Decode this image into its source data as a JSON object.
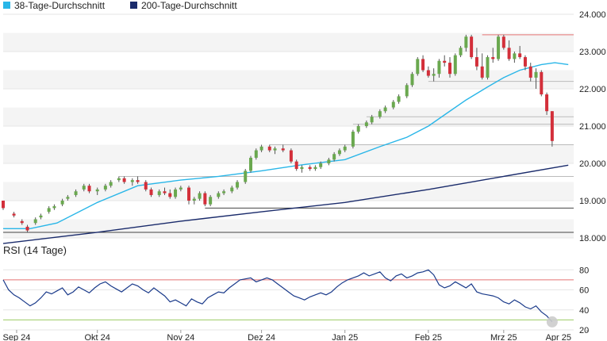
{
  "chart_data": {
    "type": "candlestick",
    "legend": {
      "position": "top-left",
      "entries": [
        {
          "label": "38-Tage-Durchschnitt",
          "color": "#29b6e8"
        },
        {
          "label": "200-Tage-Durchschnitt",
          "color": "#1a2b6b"
        }
      ]
    },
    "price_axis": {
      "side": "right",
      "range": [
        18000,
        24000
      ],
      "ticks": [
        "18.000",
        "19.000",
        "20.000",
        "21.000",
        "22.000",
        "23.000",
        "24.000"
      ]
    },
    "x_axis": {
      "range": [
        0,
        212
      ],
      "ticks": [
        {
          "label": "Sep 24",
          "day": 5
        },
        {
          "label": "Okt 24",
          "day": 35
        },
        {
          "label": "Nov 24",
          "day": 66
        },
        {
          "label": "Dez 24",
          "day": 96
        },
        {
          "label": "Jan 25",
          "day": 127
        },
        {
          "label": "Feb 25",
          "day": 158
        },
        {
          "label": "Mrz 25",
          "day": 186
        },
        {
          "label": "Apr 25",
          "day": 217
        }
      ]
    },
    "colors": {
      "up": "#6aa84f",
      "down": "#d32f3a",
      "wick": "#555555",
      "ma38": "#29b6e8",
      "ma200": "#1a2b6b",
      "rsi": "#1a3a8a",
      "rsi_upper": "#e57373",
      "rsi_lower": "#9ccc65",
      "grid": "#e6e6e6",
      "band": "#f4f4f4"
    },
    "series": [
      {
        "name": "38-Tage-Durchschnitt",
        "x": [
          0,
          10,
          20,
          35,
          50,
          66,
          80,
          96,
          110,
          127,
          140,
          150,
          158,
          165,
          172,
          180,
          186,
          192,
          200,
          205,
          210
        ],
        "values": [
          18250,
          18250,
          18400,
          18950,
          19400,
          19550,
          19650,
          19800,
          19950,
          20100,
          20450,
          20700,
          21000,
          21350,
          21700,
          22050,
          22300,
          22500,
          22650,
          22700,
          22650
        ]
      },
      {
        "name": "200-Tage-Durchschnitt",
        "x": [
          0,
          35,
          66,
          96,
          127,
          158,
          186,
          210
        ],
        "values": [
          17850,
          18150,
          18450,
          18700,
          18950,
          19300,
          19650,
          19950
        ]
      }
    ],
    "candles_ohlc": [
      [
        0,
        19000,
        19000,
        18750,
        18800
      ],
      [
        4,
        18650,
        18700,
        18550,
        18600
      ],
      [
        7,
        18450,
        18500,
        18350,
        18400
      ],
      [
        9,
        18300,
        18350,
        18150,
        18200
      ],
      [
        12,
        18400,
        18550,
        18350,
        18500
      ],
      [
        14,
        18550,
        18650,
        18500,
        18600
      ],
      [
        17,
        18700,
        18850,
        18650,
        18800
      ],
      [
        19,
        18800,
        18900,
        18750,
        18850
      ],
      [
        22,
        18900,
        19050,
        18850,
        19000
      ],
      [
        24,
        19050,
        19150,
        19000,
        19100
      ],
      [
        27,
        19150,
        19300,
        19100,
        19250
      ],
      [
        30,
        19300,
        19450,
        19250,
        19400
      ],
      [
        32,
        19400,
        19450,
        19200,
        19250
      ],
      [
        35,
        19250,
        19350,
        19150,
        19300
      ],
      [
        38,
        19300,
        19450,
        19250,
        19400
      ],
      [
        40,
        19400,
        19550,
        19350,
        19500
      ],
      [
        43,
        19550,
        19650,
        19500,
        19600
      ],
      [
        45,
        19600,
        19650,
        19450,
        19500
      ],
      [
        48,
        19500,
        19600,
        19400,
        19550
      ],
      [
        50,
        19550,
        19650,
        19450,
        19500
      ],
      [
        53,
        19500,
        19550,
        19250,
        19300
      ],
      [
        55,
        19300,
        19350,
        19100,
        19150
      ],
      [
        58,
        19150,
        19300,
        19100,
        19250
      ],
      [
        60,
        19250,
        19350,
        19150,
        19200
      ],
      [
        62,
        19200,
        19300,
        19050,
        19100
      ],
      [
        64,
        19100,
        19350,
        19050,
        19300
      ],
      [
        66,
        19300,
        19400,
        19250,
        19350
      ],
      [
        69,
        19350,
        19400,
        18900,
        19000
      ],
      [
        71,
        19000,
        19100,
        18900,
        19050
      ],
      [
        73,
        19050,
        19250,
        19000,
        19200
      ],
      [
        75,
        19200,
        19250,
        18850,
        18900
      ],
      [
        77,
        18900,
        19150,
        18850,
        19100
      ],
      [
        80,
        19100,
        19250,
        19050,
        19200
      ],
      [
        82,
        19200,
        19300,
        19150,
        19250
      ],
      [
        85,
        19250,
        19400,
        19200,
        19350
      ],
      [
        87,
        19350,
        19550,
        19300,
        19500
      ],
      [
        90,
        19500,
        19850,
        19450,
        19800
      ],
      [
        92,
        19800,
        20200,
        19750,
        20150
      ],
      [
        94,
        20150,
        20400,
        20100,
        20350
      ],
      [
        96,
        20350,
        20500,
        20300,
        20450
      ],
      [
        99,
        20450,
        20500,
        20300,
        20350
      ],
      [
        101,
        20350,
        20450,
        20250,
        20400
      ],
      [
        104,
        20400,
        20500,
        20300,
        20350
      ],
      [
        107,
        20350,
        20400,
        20000,
        20050
      ],
      [
        109,
        20050,
        20100,
        19800,
        19850
      ],
      [
        111,
        19850,
        19950,
        19750,
        19900
      ],
      [
        114,
        19900,
        19950,
        19800,
        19850
      ],
      [
        116,
        19850,
        19950,
        19800,
        19900
      ],
      [
        118,
        19900,
        20050,
        19850,
        20000
      ],
      [
        121,
        20000,
        20150,
        19950,
        20100
      ],
      [
        123,
        20100,
        20300,
        20050,
        20250
      ],
      [
        125,
        20250,
        20400,
        20200,
        20350
      ],
      [
        127,
        20350,
        20500,
        20300,
        20450
      ],
      [
        130,
        20450,
        20900,
        20400,
        20850
      ],
      [
        132,
        20850,
        21050,
        20800,
        21000
      ],
      [
        135,
        21000,
        21150,
        20950,
        21100
      ],
      [
        137,
        21100,
        21300,
        21050,
        21250
      ],
      [
        140,
        21250,
        21450,
        21200,
        21400
      ],
      [
        142,
        21400,
        21550,
        21350,
        21500
      ],
      [
        145,
        21500,
        21700,
        21450,
        21650
      ],
      [
        147,
        21650,
        21850,
        21600,
        21800
      ],
      [
        150,
        21800,
        22150,
        21750,
        22100
      ],
      [
        152,
        22100,
        22450,
        22050,
        22400
      ],
      [
        154,
        22400,
        22850,
        22350,
        22800
      ],
      [
        156,
        22800,
        22900,
        22450,
        22500
      ],
      [
        158,
        22500,
        22600,
        22300,
        22350
      ],
      [
        160,
        22350,
        22550,
        22200,
        22400
      ],
      [
        162,
        22400,
        22800,
        22300,
        22750
      ],
      [
        164,
        22750,
        22900,
        22600,
        22700
      ],
      [
        166,
        22700,
        22850,
        22300,
        22400
      ],
      [
        168,
        22400,
        22950,
        22350,
        22900
      ],
      [
        170,
        22900,
        23150,
        22850,
        23100
      ],
      [
        172,
        23100,
        23450,
        23000,
        23400
      ],
      [
        174,
        23400,
        23450,
        22800,
        22850
      ],
      [
        176,
        22850,
        23100,
        22500,
        22600
      ],
      [
        178,
        22600,
        22950,
        22250,
        22300
      ],
      [
        180,
        22300,
        22900,
        22250,
        22850
      ],
      [
        182,
        22850,
        23100,
        22700,
        22800
      ],
      [
        184,
        22800,
        23450,
        22750,
        23400
      ],
      [
        186,
        23400,
        23450,
        23050,
        23100
      ],
      [
        188,
        23100,
        23300,
        22750,
        22800
      ],
      [
        190,
        22800,
        23000,
        22700,
        22950
      ],
      [
        192,
        22950,
        23150,
        22800,
        22850
      ],
      [
        194,
        22850,
        22900,
        22500,
        22600
      ],
      [
        196,
        22600,
        22700,
        22200,
        22300
      ],
      [
        198,
        22300,
        22550,
        22000,
        22450
      ],
      [
        200,
        22450,
        22500,
        21800,
        21850
      ],
      [
        202,
        21850,
        21900,
        21300,
        21400
      ],
      [
        204,
        21400,
        21400,
        20450,
        20600
      ]
    ],
    "reference_lines": [
      {
        "value": 23450,
        "color": "#e57373",
        "from_day": 178
      },
      {
        "value": 22200,
        "color": "#bbbbbb",
        "from_day": 158
      },
      {
        "value": 21250,
        "color": "#bbbbbb",
        "from_day": 135
      },
      {
        "value": 21050,
        "color": "#bbbbbb",
        "from_day": 130
      },
      {
        "value": 20500,
        "color": "#bbbbbb",
        "from_day": 99
      },
      {
        "value": 19650,
        "color": "#bbbbbb",
        "from_day": 43
      },
      {
        "value": 18800,
        "color": "#444444",
        "from_day": 75
      },
      {
        "value": 18150,
        "color": "#444444",
        "from_day": 0
      }
    ],
    "shaded_bands": [
      [
        23000,
        23500
      ],
      [
        22000,
        22500
      ],
      [
        21000,
        21500
      ],
      [
        20000,
        20500
      ],
      [
        19000,
        19500
      ],
      [
        18000,
        18500
      ]
    ],
    "rsi": {
      "title": "RSI (14 Tage)",
      "range": [
        20,
        85
      ],
      "ticks": [
        "20",
        "40",
        "60",
        "80"
      ],
      "upper": 70,
      "lower": 30,
      "x": [
        0,
        2,
        4,
        6,
        8,
        10,
        12,
        14,
        16,
        18,
        20,
        22,
        24,
        26,
        28,
        30,
        32,
        34,
        36,
        38,
        40,
        42,
        44,
        46,
        48,
        50,
        52,
        54,
        56,
        58,
        60,
        62,
        64,
        66,
        68,
        70,
        72,
        74,
        76,
        78,
        80,
        82,
        84,
        86,
        88,
        90,
        92,
        94,
        96,
        98,
        100,
        102,
        104,
        106,
        108,
        110,
        112,
        114,
        116,
        118,
        120,
        122,
        124,
        126,
        128,
        130,
        132,
        134,
        136,
        138,
        140,
        142,
        144,
        146,
        148,
        150,
        152,
        154,
        156,
        158,
        160,
        162,
        164,
        166,
        168,
        170,
        172,
        174,
        176,
        178,
        180,
        182,
        184,
        186,
        188,
        190,
        192,
        194,
        196,
        198,
        200,
        202,
        204
      ],
      "values": [
        70,
        60,
        55,
        52,
        48,
        44,
        47,
        52,
        58,
        56,
        59,
        62,
        55,
        58,
        63,
        60,
        57,
        62,
        66,
        68,
        64,
        61,
        58,
        62,
        66,
        64,
        60,
        57,
        62,
        58,
        54,
        48,
        50,
        47,
        44,
        51,
        48,
        46,
        52,
        55,
        58,
        57,
        62,
        66,
        70,
        71,
        72,
        68,
        70,
        72,
        70,
        66,
        62,
        58,
        54,
        52,
        50,
        53,
        55,
        57,
        55,
        58,
        63,
        67,
        70,
        72,
        74,
        77,
        74,
        76,
        78,
        72,
        69,
        74,
        76,
        72,
        74,
        77,
        78,
        80,
        75,
        65,
        62,
        64,
        68,
        65,
        62,
        66,
        58,
        56,
        55,
        54,
        52,
        48,
        46,
        50,
        47,
        43,
        41,
        44,
        38,
        34,
        28
      ]
    }
  }
}
